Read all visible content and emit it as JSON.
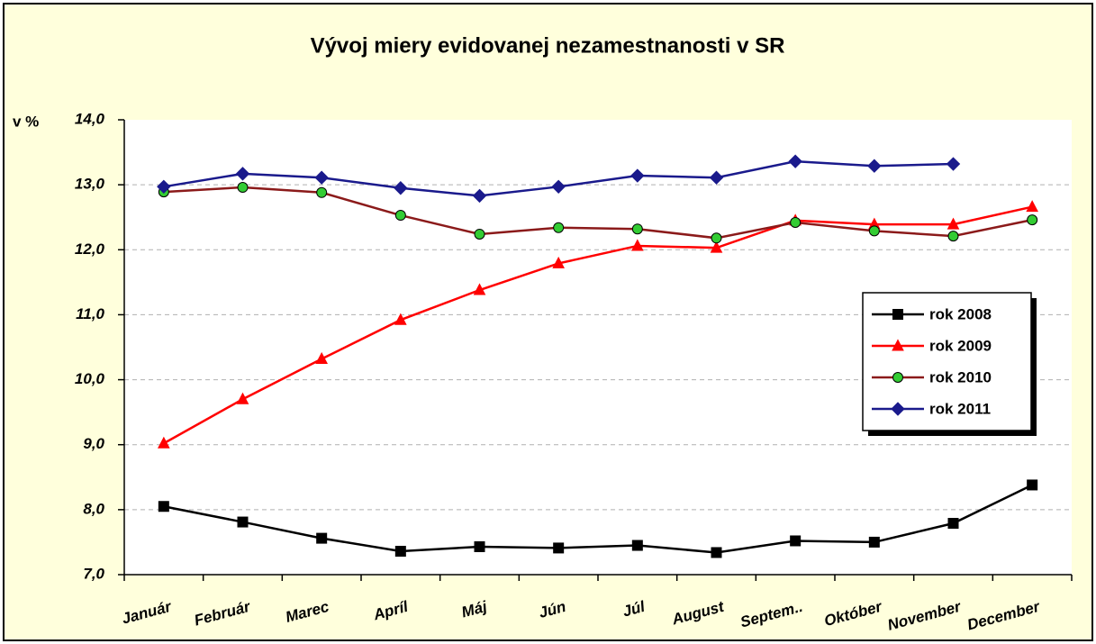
{
  "chart_data": {
    "type": "line",
    "title": "Vývoj miery evidovanej nezamestnanosti v SR",
    "y_label": "v %",
    "categories": [
      "Január",
      "Február",
      "Marec",
      "Apríl",
      "Máj",
      "Jún",
      "Júl",
      "August",
      "Septem..",
      "Október",
      "November",
      "December"
    ],
    "series": [
      {
        "name": "rok 2008",
        "color": "#000000",
        "marker": "square",
        "marker_color": "#000000",
        "values": [
          8.05,
          7.81,
          7.56,
          7.36,
          7.43,
          7.41,
          7.45,
          7.34,
          7.52,
          7.5,
          7.79,
          8.38
        ]
      },
      {
        "name": "rok 2009",
        "color": "#ff0000",
        "marker": "triangle",
        "marker_color": "#ff0000",
        "values": [
          9.02,
          9.7,
          10.32,
          10.92,
          11.38,
          11.79,
          12.06,
          12.03,
          12.45,
          12.39,
          12.39,
          12.66
        ]
      },
      {
        "name": "rok 2010",
        "color": "#8b1a1a",
        "marker": "circle",
        "marker_color": "#33cc33",
        "values": [
          12.89,
          12.96,
          12.88,
          12.53,
          12.24,
          12.34,
          12.32,
          12.18,
          12.42,
          12.29,
          12.21,
          12.46
        ]
      },
      {
        "name": "rok 2011",
        "color": "#1a1a8c",
        "marker": "diamond",
        "marker_color": "#1a1a8c",
        "values": [
          12.97,
          13.17,
          13.11,
          12.95,
          12.83,
          12.97,
          13.14,
          13.11,
          13.36,
          13.29,
          13.32,
          null
        ]
      }
    ],
    "ylim": [
      7,
      14
    ],
    "yticks": [
      {
        "value": 7,
        "label": "7,0"
      },
      {
        "value": 8,
        "label": "8,0"
      },
      {
        "value": 9,
        "label": "9,0"
      },
      {
        "value": 10,
        "label": "10,0"
      },
      {
        "value": 11,
        "label": "11,0"
      },
      {
        "value": 12,
        "label": "12,0"
      },
      {
        "value": 13,
        "label": "13,0"
      },
      {
        "value": 14,
        "label": "14,0"
      }
    ],
    "grid": true,
    "legend": "right"
  }
}
